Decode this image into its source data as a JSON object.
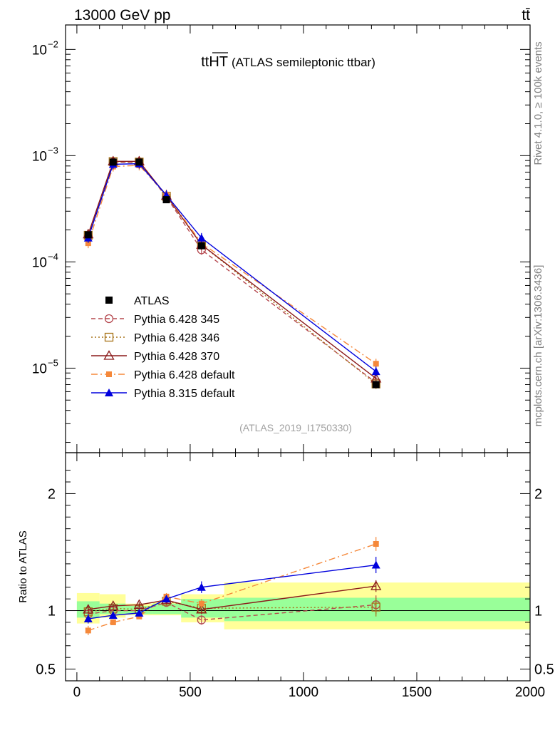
{
  "header": {
    "energy_label": "13000 GeV pp",
    "process_label": "tt̄"
  },
  "side_labels": {
    "rivet": "Rivet 4.1.0, ≥ 100k events",
    "site": "mcplots.cern.ch [arXiv:1306.3436]"
  },
  "chart_data": {
    "type": "line",
    "title_main": "ttHT",
    "title_sub": "(ATLAS semileptonic ttbar)",
    "analysis_id": "(ATLAS_2019_I1750330)",
    "x_range": [
      -50,
      2000
    ],
    "x_ticks": [
      "0",
      "500",
      "1000",
      "1500",
      "2000"
    ],
    "main_panel": {
      "yscale": "log",
      "y_range": [
        1.6e-06,
        0.017
      ],
      "y_tick_labels": [
        {
          "base": "10",
          "exp": "−2",
          "value": 0.01
        },
        {
          "base": "10",
          "exp": "−3",
          "value": 0.001
        },
        {
          "base": "10",
          "exp": "−4",
          "value": 0.0001
        },
        {
          "base": "10",
          "exp": "−5",
          "value": 1e-05
        }
      ]
    },
    "ratio_panel": {
      "ylabel": "Ratio to ATLAS",
      "y_range": [
        0.4,
        2.35
      ],
      "y_tick_labels": [
        "2",
        "1",
        "0.5"
      ],
      "y_tick_values": [
        2,
        1,
        0.5
      ]
    },
    "x": [
      50,
      160,
      275,
      395,
      550,
      1320
    ],
    "bin_edges": [
      0,
      100,
      215,
      335,
      460,
      650,
      2000
    ],
    "band_inner": [
      [
        0.94,
        1.08
      ],
      [
        0.97,
        1.06
      ],
      [
        0.97,
        1.04
      ],
      [
        0.97,
        1.06
      ],
      [
        0.94,
        1.1
      ],
      [
        0.91,
        1.11
      ]
    ],
    "band_outer": [
      [
        0.89,
        1.15
      ],
      [
        0.94,
        1.14
      ],
      [
        0.96,
        1.06
      ],
      [
        0.96,
        1.07
      ],
      [
        0.9,
        1.14
      ],
      [
        0.84,
        1.24
      ]
    ],
    "data": {
      "name": "ATLAS",
      "values": [
        0.00018,
        0.00087,
        0.00087,
        0.000385,
        0.000142,
        7e-06
      ]
    },
    "series": [
      {
        "name": "Pythia 6.428 345",
        "color": "#b5484f",
        "dash": "6,4",
        "marker": "circle-open",
        "values": [
          0.000175,
          0.00087,
          0.00086,
          0.00041,
          0.00013,
          7.3e-06
        ],
        "ratio": [
          0.97,
          1.0,
          1.0,
          1.07,
          0.92,
          1.05
        ],
        "ratio_err": [
          0.03,
          0.02,
          0.02,
          0.03,
          0.04,
          0.08
        ]
      },
      {
        "name": "Pythia 6.428 346",
        "color": "#a8741a",
        "dash": "2,3",
        "marker": "square-open",
        "values": [
          0.000178,
          0.00088,
          0.00087,
          0.000415,
          0.000145,
          7.1e-06
        ],
        "ratio": [
          0.99,
          1.02,
          1.01,
          1.08,
          1.02,
          1.03
        ],
        "ratio_err": [
          0.03,
          0.02,
          0.02,
          0.03,
          0.04,
          0.08
        ]
      },
      {
        "name": "Pythia 6.428 370",
        "color": "#8b1a1a",
        "dash": "",
        "marker": "triangle-open",
        "values": [
          0.000182,
          0.000885,
          0.000885,
          0.00042,
          0.000145,
          8e-06
        ],
        "ratio": [
          1.01,
          1.04,
          1.05,
          1.09,
          1.01,
          1.21
        ],
        "ratio_err": [
          0.03,
          0.02,
          0.02,
          0.03,
          0.04,
          0.05
        ]
      },
      {
        "name": "Pythia 6.428 default",
        "color": "#f5883a",
        "dash": "9,4,2,4",
        "marker": "square-filled",
        "values": [
          0.00015,
          0.00079,
          0.00081,
          0.00043,
          0.00015,
          1.1e-05
        ],
        "ratio": [
          0.83,
          0.9,
          0.95,
          1.12,
          1.06,
          1.57
        ],
        "ratio_err": [
          0.04,
          0.02,
          0.02,
          0.03,
          0.04,
          0.06
        ]
      },
      {
        "name": "Pythia 8.315 default",
        "color": "#0000dd",
        "dash": "",
        "marker": "triangle-filled",
        "values": [
          0.000168,
          0.00083,
          0.00084,
          0.000425,
          0.000168,
          9.3e-06
        ],
        "ratio": [
          0.93,
          0.96,
          0.98,
          1.1,
          1.2,
          1.39
        ],
        "ratio_err": [
          0.04,
          0.02,
          0.02,
          0.03,
          0.05,
          0.07
        ]
      }
    ]
  }
}
